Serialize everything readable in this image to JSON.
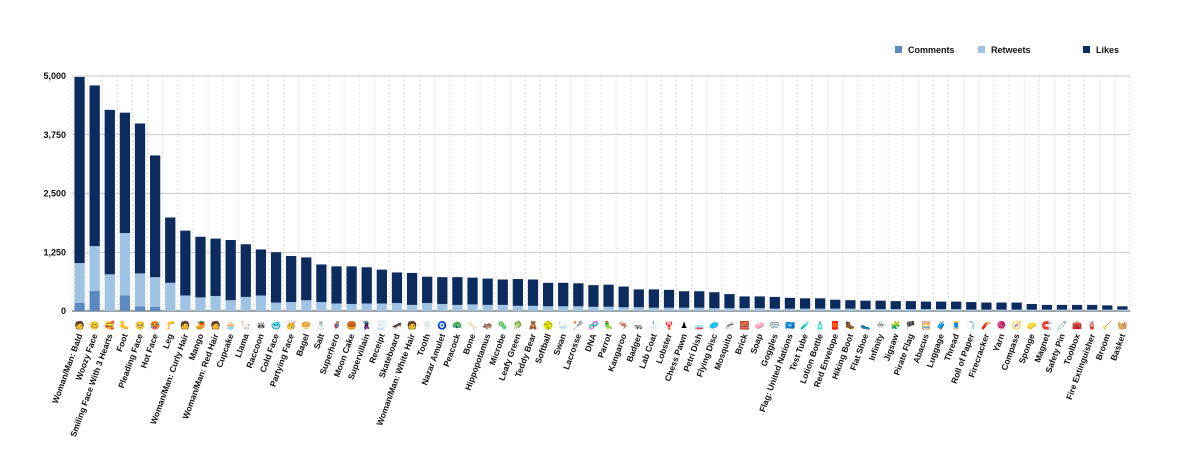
{
  "chart_data": {
    "type": "bar",
    "stacked": true,
    "categories": [
      "Woman/Man: Bald",
      "Woozy Face",
      "Smiling Face With 3 Hearts",
      "Foot",
      "Pleading Face",
      "Hot Face",
      "Leg",
      "Woman/Man: Curly Hair",
      "Mango",
      "Woman/Man: Red Hair",
      "Cupcake",
      "Llama",
      "Raccoon",
      "Cold Face",
      "Partying Face",
      "Bagel",
      "Salt",
      "Superhero",
      "Moon Cake",
      "Supervillain",
      "Receipt",
      "Skateboard",
      "Woman/Man: White Hair",
      "Tooth",
      "Nazar Amulet",
      "Peacock",
      "Bone",
      "Hippopotamus",
      "Microbe",
      "Leafy Green",
      "Teddy Bear",
      "Softball",
      "Swan",
      "Lacrosse",
      "DNA",
      "Parrot",
      "Kangaroo",
      "Badger",
      "Lab Coat",
      "Lobster",
      "Chess Pawn",
      "Petri Dish",
      "Flying Disc",
      "Mosquito",
      "Brick",
      "Soap",
      "Goggles",
      "Flag: United Nations",
      "Test Tube",
      "Lotion Bottle",
      "Red Envelope",
      "Hiking Boot",
      "Flat Shoe",
      "Infinity",
      "Jigsaw",
      "Pirate Flag",
      "Abacus",
      "Luggage",
      "Thread",
      "Roll of Paper",
      "Firecracker",
      "Yarn",
      "Compass",
      "Sponge",
      "Magnet",
      "Safety Pin",
      "Toolbox",
      "Fire Extinguisher",
      "Broom",
      "Basket"
    ],
    "emojis": [
      "🧑",
      "🥴",
      "🥰",
      "🦶",
      "🥺",
      "🥵",
      "🦵",
      "🧑",
      "🥭",
      "🧑",
      "🧁",
      "🦙",
      "🦝",
      "🥶",
      "🥳",
      "🥯",
      "🧂",
      "🦸",
      "🥮",
      "🦹",
      "🧾",
      "🛹",
      "🧑",
      "🦷",
      "🧿",
      "🦚",
      "🦴",
      "🦛",
      "🦠",
      "🥬",
      "🧸",
      "🥎",
      "🦢",
      "🥍",
      "🧬",
      "🦜",
      "🦘",
      "🦡",
      "🥼",
      "🦞",
      "♟",
      "🧫",
      "🥏",
      "🦟",
      "🧱",
      "🧼",
      "🥽",
      "🇺🇳",
      "🧪",
      "🧴",
      "🧧",
      "🥾",
      "🥿",
      "♾",
      "🧩",
      "🏴",
      "🧮",
      "🧳",
      "🧵",
      "🧻",
      "🧨",
      "🧶",
      "🧭",
      "🧽",
      "🧲",
      "🧷",
      "🧰",
      "🧯",
      "🧹",
      "🧺"
    ],
    "series": [
      {
        "name": "Comments",
        "color": "#5b89c2",
        "values": [
          170,
          430,
          0,
          330,
          100,
          90,
          0,
          0,
          0,
          0,
          0,
          0,
          0,
          0,
          0,
          0,
          0,
          0,
          0,
          0,
          0,
          0,
          0,
          0,
          0,
          0,
          0,
          0,
          0,
          0,
          0,
          0,
          0,
          0,
          0,
          0,
          0,
          0,
          0,
          0,
          0,
          0,
          0,
          0,
          0,
          0,
          0,
          0,
          0,
          0,
          0,
          0,
          0,
          0,
          0,
          0,
          0,
          0,
          0,
          0,
          0,
          0,
          0,
          0,
          0,
          0,
          0,
          0,
          0,
          0
        ]
      },
      {
        "name": "Retweets",
        "color": "#9ec3e4",
        "values": [
          850,
          950,
          780,
          1330,
          700,
          630,
          600,
          330,
          290,
          320,
          230,
          300,
          330,
          180,
          190,
          230,
          190,
          160,
          150,
          160,
          160,
          170,
          130,
          170,
          150,
          130,
          140,
          130,
          130,
          110,
          110,
          100,
          100,
          100,
          90,
          90,
          80,
          80,
          70,
          70,
          70,
          70,
          60,
          60,
          60,
          60,
          50,
          50,
          50,
          50,
          50,
          50,
          40,
          40,
          40,
          40,
          40,
          40,
          40,
          30,
          30,
          30,
          30,
          30,
          30,
          30,
          30,
          30,
          30,
          30
        ]
      },
      {
        "name": "Likes",
        "color": "#0c2b5e",
        "values": [
          3960,
          3420,
          3500,
          2560,
          3190,
          2590,
          1390,
          1380,
          1290,
          1220,
          1280,
          1120,
          980,
          1070,
          980,
          910,
          800,
          790,
          800,
          770,
          720,
          650,
          680,
          560,
          570,
          590,
          570,
          560,
          540,
          570,
          560,
          500,
          500,
          490,
          460,
          470,
          440,
          380,
          390,
          380,
          350,
          350,
          340,
          300,
          250,
          250,
          250,
          230,
          220,
          220,
          190,
          180,
          180,
          180,
          170,
          170,
          160,
          160,
          160,
          160,
          150,
          150,
          150,
          120,
          100,
          100,
          100,
          100,
          90,
          70
        ]
      }
    ],
    "ylim": [
      0,
      5000
    ],
    "yticks": [
      0,
      1250,
      2500,
      3750,
      5000
    ],
    "ytick_labels": [
      "0",
      "1,250",
      "2,500",
      "3,750",
      "5,000"
    ],
    "legend": {
      "placement": "top-right"
    },
    "grid": {
      "horizontal": true,
      "vertical": "dashed"
    },
    "title": "",
    "xlabel": "",
    "ylabel": ""
  }
}
